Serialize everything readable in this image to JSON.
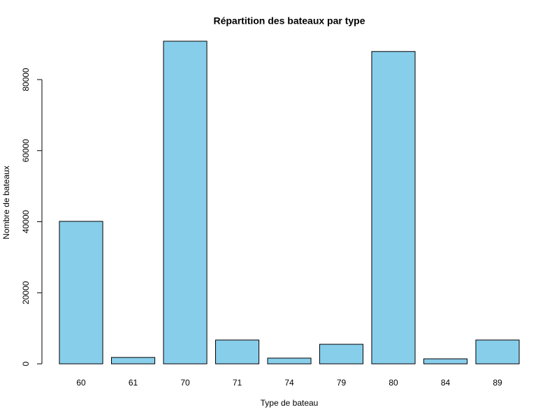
{
  "chart_data": {
    "type": "bar",
    "title": "Répartition des bateaux par type",
    "x_label": "Type de bateau",
    "y_label": "Nombre de bateaux",
    "categories": [
      "60",
      "61",
      "70",
      "71",
      "74",
      "79",
      "80",
      "84",
      "89"
    ],
    "values": [
      40100,
      1800,
      90800,
      6700,
      1600,
      5500,
      87900,
      1400,
      6700
    ],
    "color": "#87ceeb",
    "ylim": [
      0,
      90800
    ],
    "yticks": [
      0,
      20000,
      40000,
      60000,
      80000
    ],
    "grid": false
  }
}
